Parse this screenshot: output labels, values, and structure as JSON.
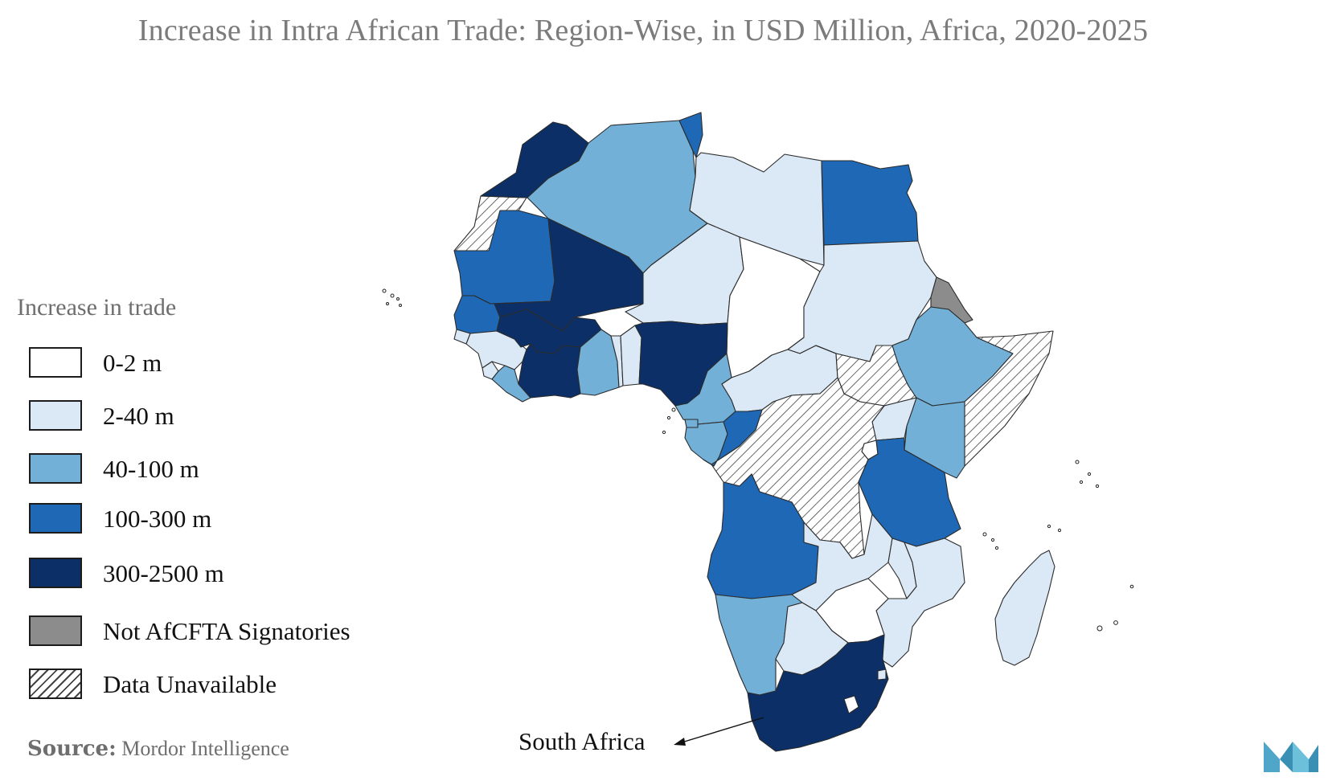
{
  "title": "Increase in Intra African Trade: Region-Wise, in USD Million, Africa, 2020-2025",
  "legend": {
    "title": "Increase in trade",
    "items": [
      {
        "label": "0-2 m",
        "color": "#ffffff",
        "pattern": "solid"
      },
      {
        "label": "2-40 m",
        "color": "#dbe8f5",
        "pattern": "solid"
      },
      {
        "label": "40-100 m",
        "color": "#73b0d7",
        "pattern": "solid"
      },
      {
        "label": "100-300 m",
        "color": "#1f68b5",
        "pattern": "solid"
      },
      {
        "label": "300-2500 m",
        "color": "#0b2f66",
        "pattern": "solid"
      },
      {
        "label": "Not AfCFTA Signatories",
        "color": "#8c8c8c",
        "pattern": "solid"
      },
      {
        "label": "Data Unavailable",
        "color": "#ffffff",
        "pattern": "hatched"
      }
    ]
  },
  "annotation": {
    "label": "South Africa"
  },
  "source": {
    "prefix": "Source:",
    "name": "Mordor Intelligence"
  },
  "logo": {
    "icon": "mordor-intelligence-logo-icon",
    "color": "#4fa6c8"
  }
}
